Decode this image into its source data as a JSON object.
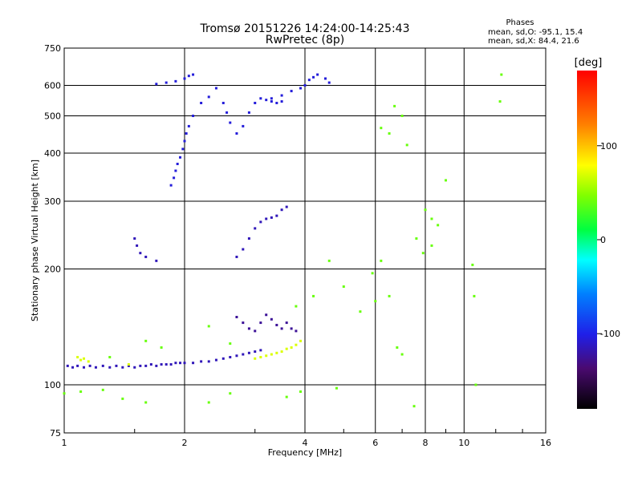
{
  "chart_data": {
    "type": "scatter",
    "title": "Tromsø 20151226 14:24:00-14:25:43",
    "subtitle": "RwPretec (8p)",
    "xlabel": "Frequency [MHz]",
    "ylabel": "Stationary phase Virtual Height [km]",
    "x_scale": "log",
    "y_scale": "log",
    "xlim": [
      1,
      16
    ],
    "ylim": [
      75,
      750
    ],
    "x_ticks": [
      "1",
      "2",
      "4",
      "6",
      "8",
      "10",
      "16"
    ],
    "x_tick_values": [
      1,
      2,
      4,
      6,
      8,
      10,
      16
    ],
    "y_ticks": [
      "75",
      "100",
      "200",
      "300",
      "400",
      "500",
      "600",
      "750"
    ],
    "y_tick_values": [
      75,
      100,
      200,
      300,
      400,
      500,
      600,
      750
    ],
    "grid": true,
    "stats": {
      "heading": "Phases",
      "line1": "mean, sd,O:  -95.1, 15.4",
      "line2": "mean, sd,X:   84.4, 21.6"
    },
    "colorbar": {
      "label": "[deg]",
      "range": [
        -180,
        180
      ],
      "ticks": [
        "100",
        "0",
        "-100"
      ],
      "tick_values": [
        100,
        0,
        -100
      ]
    },
    "series": [
      {
        "kind": "E-layer trace",
        "points": [
          [
            1.02,
            112
          ],
          [
            1.05,
            111
          ],
          [
            1.08,
            112
          ],
          [
            1.12,
            111
          ],
          [
            1.16,
            112
          ],
          [
            1.2,
            111
          ],
          [
            1.25,
            112
          ],
          [
            1.3,
            111
          ],
          [
            1.35,
            112
          ],
          [
            1.4,
            111
          ],
          [
            1.45,
            112
          ],
          [
            1.5,
            111
          ],
          [
            1.55,
            112
          ],
          [
            1.6,
            112
          ],
          [
            1.65,
            113
          ],
          [
            1.7,
            112
          ],
          [
            1.75,
            113
          ],
          [
            1.8,
            113
          ],
          [
            1.85,
            113
          ],
          [
            1.9,
            114
          ],
          [
            1.95,
            114
          ],
          [
            2.0,
            114
          ],
          [
            2.1,
            114
          ],
          [
            2.2,
            115
          ],
          [
            2.3,
            115
          ],
          [
            2.4,
            116
          ],
          [
            2.5,
            117
          ],
          [
            2.6,
            118
          ],
          [
            2.7,
            119
          ],
          [
            2.8,
            120
          ],
          [
            2.9,
            121
          ],
          [
            3.0,
            122
          ],
          [
            3.1,
            123
          ]
        ],
        "phase": -115
      },
      {
        "kind": "E-layer trace (X)",
        "points": [
          [
            1.08,
            118
          ],
          [
            1.1,
            116
          ],
          [
            1.12,
            117
          ],
          [
            1.15,
            115
          ],
          [
            1.45,
            113
          ],
          [
            3.0,
            117
          ],
          [
            3.1,
            118
          ],
          [
            3.2,
            119
          ],
          [
            3.3,
            120
          ],
          [
            3.4,
            121
          ],
          [
            3.5,
            122
          ],
          [
            3.6,
            124
          ],
          [
            3.7,
            125
          ],
          [
            3.8,
            127
          ],
          [
            3.9,
            130
          ]
        ],
        "phase": 70
      },
      {
        "kind": "Es / oblique cluster",
        "points": [
          [
            2.7,
            150
          ],
          [
            2.8,
            145
          ],
          [
            2.9,
            140
          ],
          [
            3.0,
            138
          ],
          [
            3.1,
            145
          ],
          [
            3.2,
            152
          ],
          [
            3.3,
            148
          ],
          [
            3.4,
            143
          ],
          [
            3.5,
            140
          ],
          [
            3.6,
            145
          ],
          [
            3.7,
            140
          ],
          [
            3.8,
            138
          ]
        ],
        "phase": -125
      },
      {
        "kind": "F1 trace",
        "points": [
          [
            1.5,
            240
          ],
          [
            1.52,
            230
          ],
          [
            1.55,
            220
          ],
          [
            1.6,
            215
          ],
          [
            1.7,
            210
          ],
          [
            2.7,
            215
          ],
          [
            2.8,
            225
          ],
          [
            2.9,
            240
          ],
          [
            3.0,
            255
          ],
          [
            3.1,
            265
          ],
          [
            3.2,
            270
          ],
          [
            3.3,
            272
          ],
          [
            3.4,
            275
          ],
          [
            3.5,
            285
          ],
          [
            3.6,
            290
          ]
        ],
        "phase": -115
      },
      {
        "kind": "F2 trace (O)",
        "points": [
          [
            1.85,
            330
          ],
          [
            1.88,
            345
          ],
          [
            1.9,
            360
          ],
          [
            1.92,
            375
          ],
          [
            1.95,
            390
          ],
          [
            1.98,
            410
          ],
          [
            2.0,
            430
          ],
          [
            2.02,
            450
          ],
          [
            2.05,
            470
          ],
          [
            2.1,
            500
          ],
          [
            2.2,
            540
          ],
          [
            2.3,
            560
          ],
          [
            2.4,
            590
          ],
          [
            2.5,
            540
          ],
          [
            2.55,
            510
          ],
          [
            2.6,
            480
          ],
          [
            2.7,
            450
          ],
          [
            2.8,
            470
          ],
          [
            2.9,
            510
          ],
          [
            3.0,
            540
          ],
          [
            3.1,
            555
          ],
          [
            3.2,
            550
          ],
          [
            3.3,
            545
          ],
          [
            3.4,
            540
          ],
          [
            3.5,
            545
          ]
        ],
        "phase": -105
      },
      {
        "kind": "F2 top trace",
        "points": [
          [
            1.7,
            605
          ],
          [
            1.8,
            610
          ],
          [
            1.9,
            615
          ],
          [
            2.0,
            625
          ],
          [
            2.05,
            635
          ],
          [
            2.1,
            640
          ],
          [
            3.3,
            555
          ],
          [
            3.5,
            565
          ],
          [
            3.7,
            580
          ],
          [
            3.9,
            590
          ],
          [
            4.0,
            600
          ],
          [
            4.1,
            620
          ],
          [
            4.2,
            630
          ],
          [
            4.3,
            640
          ],
          [
            4.5,
            625
          ],
          [
            4.6,
            610
          ]
        ],
        "phase": -105
      },
      {
        "kind": "scattered points",
        "points": [
          [
            1.0,
            95
          ],
          [
            1.1,
            96
          ],
          [
            1.25,
            97
          ],
          [
            1.4,
            92
          ],
          [
            1.6,
            90
          ],
          [
            2.3,
            90
          ],
          [
            2.6,
            95
          ],
          [
            3.6,
            93
          ],
          [
            3.9,
            96
          ],
          [
            4.8,
            98
          ],
          [
            5.5,
            155
          ],
          [
            6.0,
            165
          ],
          [
            6.5,
            170
          ],
          [
            6.8,
            125
          ],
          [
            7.0,
            120
          ],
          [
            7.5,
            88
          ],
          [
            8.0,
            285
          ],
          [
            8.3,
            270
          ],
          [
            8.6,
            260
          ],
          [
            9.0,
            340
          ],
          [
            10.5,
            205
          ],
          [
            10.6,
            170
          ],
          [
            10.7,
            100
          ],
          [
            12.3,
            545
          ],
          [
            12.4,
            640
          ],
          [
            6.2,
            465
          ],
          [
            6.5,
            450
          ],
          [
            6.7,
            530
          ],
          [
            7.0,
            500
          ],
          [
            7.2,
            420
          ],
          [
            5.9,
            195
          ],
          [
            6.2,
            210
          ],
          [
            7.6,
            240
          ],
          [
            7.9,
            220
          ],
          [
            8.3,
            230
          ],
          [
            5.0,
            180
          ],
          [
            4.6,
            210
          ],
          [
            3.8,
            160
          ],
          [
            4.2,
            170
          ],
          [
            1.3,
            118
          ],
          [
            1.6,
            130
          ],
          [
            1.75,
            125
          ],
          [
            2.3,
            142
          ],
          [
            2.6,
            128
          ]
        ],
        "phase": 40
      }
    ]
  }
}
